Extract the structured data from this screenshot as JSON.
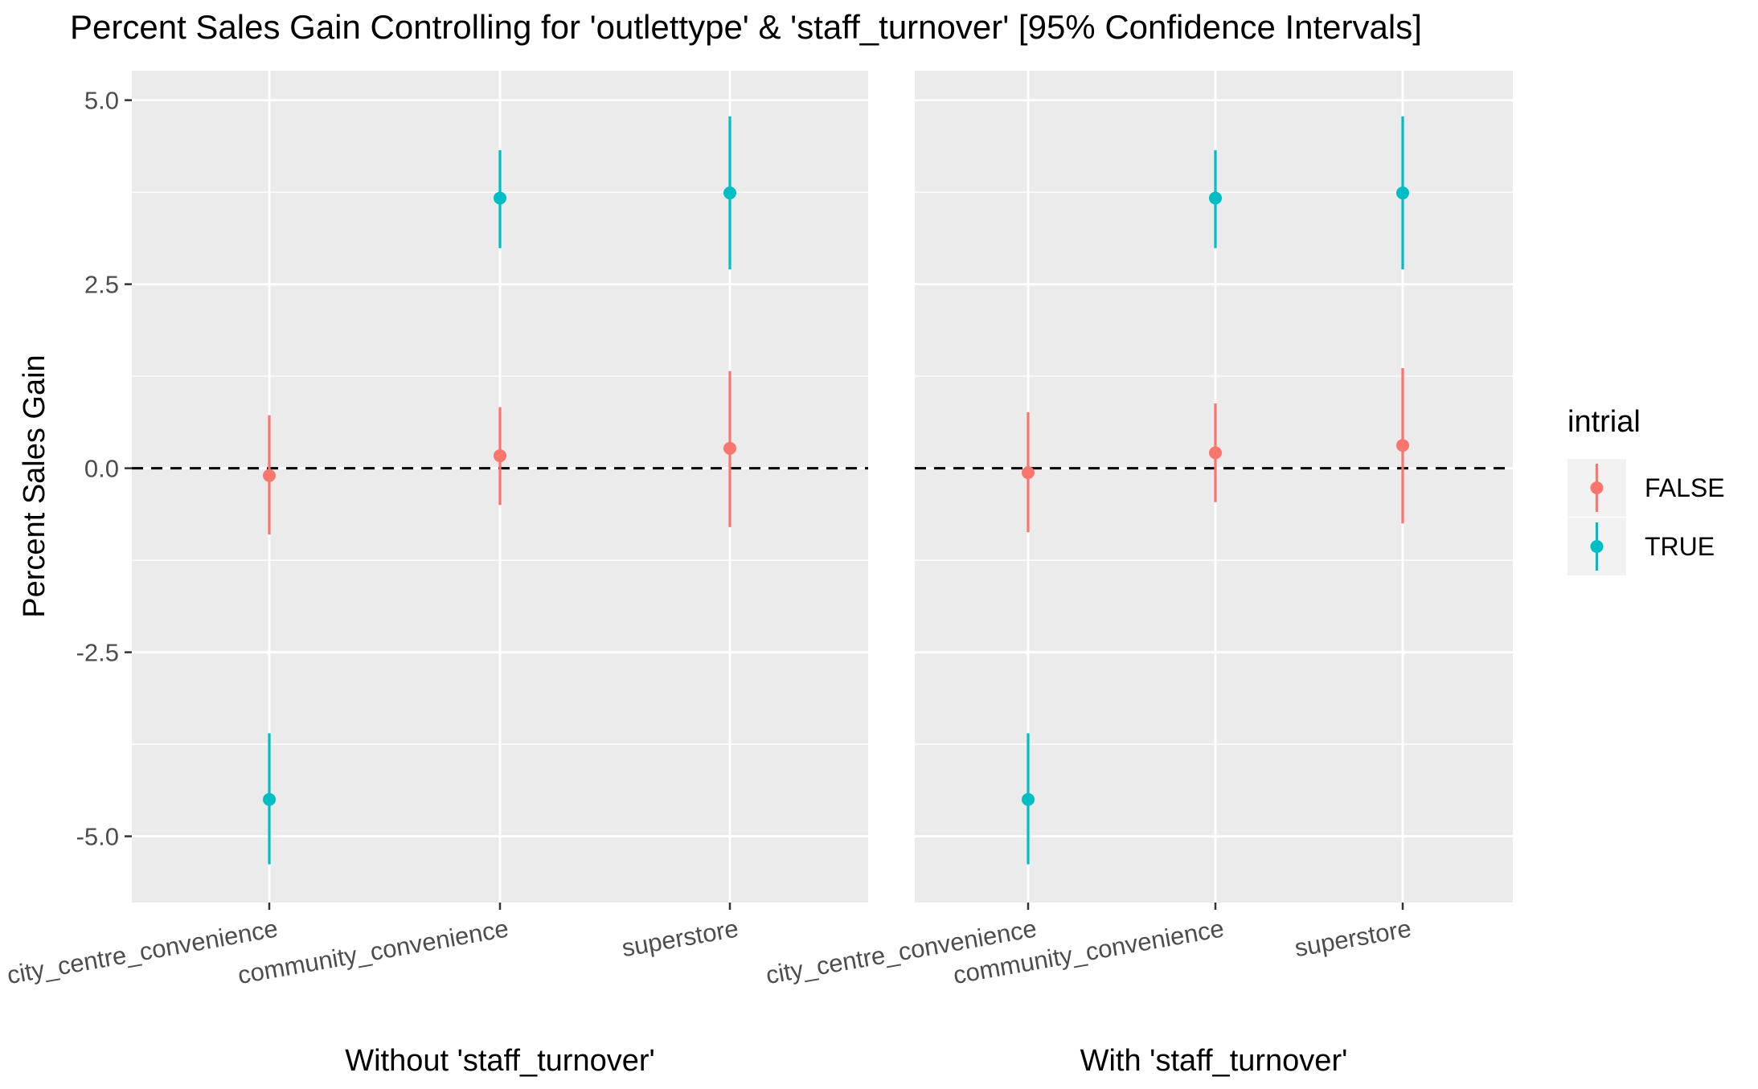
{
  "chart_data": {
    "type": "errorbar",
    "title": "Percent Sales Gain Controlling for 'outlettype' & 'staff_turnover' [95% Confidence Intervals]",
    "ylabel": "Percent Sales Gain",
    "ylim": [
      -5.9,
      5.4
    ],
    "yticks": [
      5.0,
      2.5,
      0.0,
      -2.5,
      -5.0
    ],
    "ytick_labels": [
      "5.0",
      "2.5",
      "0.0",
      "-2.5",
      "-5.0"
    ],
    "categories": [
      "city_centre_convenience",
      "community_convenience",
      "superstore"
    ],
    "reference_line": {
      "y": 0,
      "style": "dashed"
    },
    "grid": true,
    "legend": {
      "title": "intrial",
      "position": "right",
      "entries": [
        {
          "label": "FALSE",
          "color": "#F8766D"
        },
        {
          "label": "TRUE",
          "color": "#00BFC4"
        }
      ]
    },
    "panels": [
      {
        "label": "Without 'staff_turnover'",
        "series": [
          {
            "group": "FALSE",
            "color": "#F8766D",
            "estimate": [
              -0.1,
              0.17,
              0.27
            ],
            "lower": [
              -0.9,
              -0.5,
              -0.8
            ],
            "upper": [
              0.72,
              0.83,
              1.32
            ]
          },
          {
            "group": "TRUE",
            "color": "#00BFC4",
            "estimate": [
              -4.5,
              3.67,
              3.74
            ],
            "lower": [
              -5.38,
              2.99,
              2.7
            ],
            "upper": [
              -3.6,
              4.32,
              4.78
            ]
          }
        ]
      },
      {
        "label": "With 'staff_turnover'",
        "series": [
          {
            "group": "FALSE",
            "color": "#F8766D",
            "estimate": [
              -0.06,
              0.21,
              0.31
            ],
            "lower": [
              -0.87,
              -0.46,
              -0.75
            ],
            "upper": [
              0.76,
              0.88,
              1.36
            ]
          },
          {
            "group": "TRUE",
            "color": "#00BFC4",
            "estimate": [
              -4.5,
              3.67,
              3.74
            ],
            "lower": [
              -5.38,
              2.99,
              2.7
            ],
            "upper": [
              -3.6,
              4.32,
              4.78
            ]
          }
        ]
      }
    ]
  }
}
